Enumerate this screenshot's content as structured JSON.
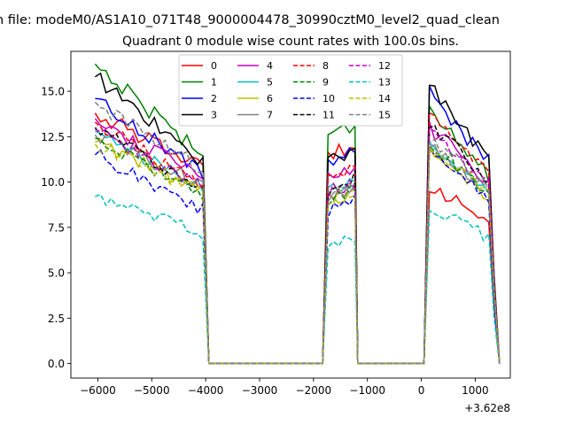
{
  "chart_data": {
    "type": "line",
    "suptitle": "n file: modeM0/AS1A10_071T48_9000004478_30990cztM0_level2_quad_clean",
    "title": "Quadrant 0 module wise count rates with 100.0s bins.",
    "xlabel": "",
    "ylabel": "",
    "x_offset_label": "+3.62e8",
    "xlim": [
      -6500,
      1650
    ],
    "ylim": [
      -0.8,
      17.2
    ],
    "xticks": [
      -6000,
      -5000,
      -4000,
      -3000,
      -2000,
      -1000,
      0,
      1000
    ],
    "xtick_labels": [
      "−6000",
      "−5000",
      "−4000",
      "−3000",
      "−2000",
      "−1000",
      "0",
      "1000"
    ],
    "yticks": [
      0.0,
      2.5,
      5.0,
      7.5,
      10.0,
      12.5,
      15.0
    ],
    "ytick_labels": [
      "0.0",
      "2.5",
      "5.0",
      "7.5",
      "10.0",
      "12.5",
      "15.0"
    ],
    "grid": false,
    "legend_position": "top-center",
    "segments": [
      {
        "t0": -6050,
        "t1": -4040
      },
      {
        "t0": -1730,
        "t1": -1280
      },
      {
        "t0": 150,
        "t1": 1350
      }
    ],
    "series": [
      {
        "name": "0",
        "color": "#ff0000",
        "dash": "solid",
        "level": [
          13.8,
          11.5,
          9.9
        ],
        "slope": 0.22,
        "rough": 0.45
      },
      {
        "name": "1",
        "color": "#008000",
        "dash": "solid",
        "level": [
          16.5,
          12.4,
          14.2
        ],
        "slope": 0.3,
        "rough": 0.5
      },
      {
        "name": "2",
        "color": "#0000ff",
        "dash": "solid",
        "level": [
          14.6,
          11.0,
          14.9
        ],
        "slope": 0.28,
        "rough": 0.45
      },
      {
        "name": "3",
        "color": "#000000",
        "dash": "solid",
        "level": [
          15.8,
          11.1,
          15.4
        ],
        "slope": 0.3,
        "rough": 0.45
      },
      {
        "name": "4",
        "color": "#bf00bf",
        "dash": "solid",
        "level": [
          13.5,
          10.2,
          13.0
        ],
        "slope": 0.25,
        "rough": 0.45
      },
      {
        "name": "5",
        "color": "#00bfbf",
        "dash": "solid",
        "level": [
          12.8,
          9.4,
          12.3
        ],
        "slope": 0.25,
        "rough": 0.4
      },
      {
        "name": "6",
        "color": "#bfbf00",
        "dash": "solid",
        "level": [
          12.2,
          9.0,
          11.6
        ],
        "slope": 0.22,
        "rough": 0.4
      },
      {
        "name": "7",
        "color": "#808080",
        "dash": "solid",
        "level": [
          12.6,
          9.2,
          12.1
        ],
        "slope": 0.22,
        "rough": 0.4
      },
      {
        "name": "8",
        "color": "#ff0000",
        "dash": "dashed",
        "level": [
          13.3,
          10.0,
          13.6
        ],
        "slope": 0.26,
        "rough": 0.4
      },
      {
        "name": "9",
        "color": "#008000",
        "dash": "dashed",
        "level": [
          12.4,
          9.1,
          12.2
        ],
        "slope": 0.25,
        "rough": 0.4
      },
      {
        "name": "10",
        "color": "#0000ff",
        "dash": "dashed",
        "level": [
          11.5,
          8.4,
          11.8
        ],
        "slope": 0.26,
        "rough": 0.45
      },
      {
        "name": "11",
        "color": "#000000",
        "dash": "dashed",
        "level": [
          13.0,
          9.6,
          13.3
        ],
        "slope": 0.26,
        "rough": 0.45
      },
      {
        "name": "12",
        "color": "#bf00bf",
        "dash": "dashed",
        "level": [
          12.9,
          9.4,
          12.8
        ],
        "slope": 0.25,
        "rough": 0.4
      },
      {
        "name": "13",
        "color": "#00bfbf",
        "dash": "dashed",
        "level": [
          9.2,
          6.6,
          8.7
        ],
        "slope": 0.22,
        "rough": 0.35
      },
      {
        "name": "14",
        "color": "#bfbf00",
        "dash": "dashed",
        "level": [
          12.1,
          9.0,
          11.9
        ],
        "slope": 0.22,
        "rough": 0.4
      },
      {
        "name": "15",
        "color": "#808080",
        "dash": "dashed",
        "level": [
          14.4,
          9.1,
          12.6
        ],
        "slope": 0.26,
        "rough": 0.45
      }
    ]
  }
}
